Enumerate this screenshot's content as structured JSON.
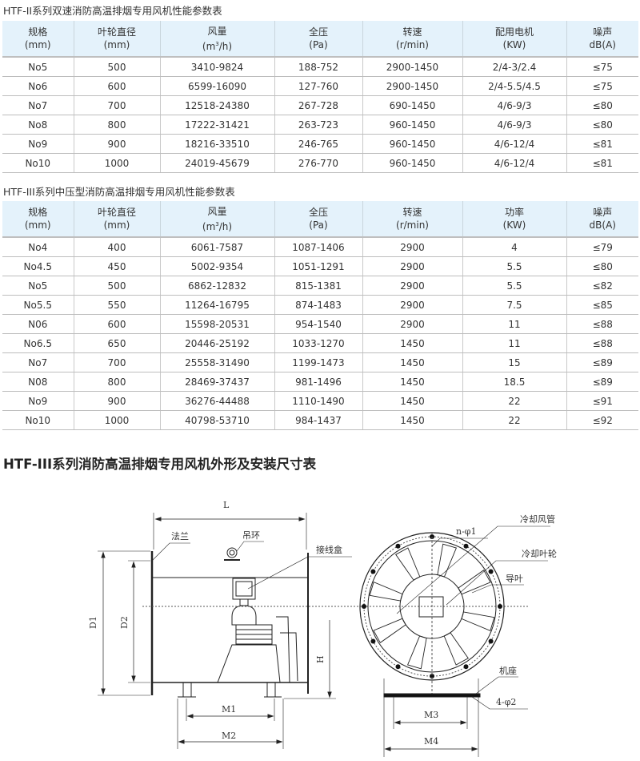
{
  "table1": {
    "title": "HTF-II系列双速消防高温排烟专用风机性能参数表",
    "headers": [
      [
        "规格",
        "(mm)"
      ],
      [
        "叶轮直径",
        "(mm)"
      ],
      [
        "风量",
        "(m",
        "3",
        "/h)"
      ],
      [
        "全压",
        "(Pa)"
      ],
      [
        "转速",
        "(r/min)"
      ],
      [
        "配用电机",
        "(KW)"
      ],
      [
        "噪声",
        "dB(A)"
      ]
    ],
    "rows": [
      [
        "No5",
        "500",
        "3410-9824",
        "188-752",
        "2900-1450",
        "2/4-3/2.4",
        "≤75"
      ],
      [
        "No6",
        "600",
        "6599-16090",
        "127-760",
        "2900-1450",
        "2/4-5.5/4.5",
        "≤75"
      ],
      [
        "No7",
        "700",
        "12518-24380",
        "267-728",
        "690-1450",
        "4/6-9/3",
        "≤80"
      ],
      [
        "No8",
        "800",
        "17222-31421",
        "263-723",
        "960-1450",
        "4/6-9/3",
        "≤80"
      ],
      [
        "No9",
        "900",
        "18216-33510",
        "246-765",
        "960-1450",
        "4/6-12/4",
        "≤81"
      ],
      [
        "No10",
        "1000",
        "24019-45679",
        "276-770",
        "960-1450",
        "4/6-12/4",
        "≤81"
      ]
    ]
  },
  "table2": {
    "title": "HTF-III系列中压型消防高温排烟专用风机性能参数表",
    "headers": [
      [
        "规格",
        "(mm)"
      ],
      [
        "叶轮直径",
        "(mm)"
      ],
      [
        "风量",
        "(m",
        "3",
        "/h)"
      ],
      [
        "全压",
        "(Pa)"
      ],
      [
        "转速",
        "(r/min)"
      ],
      [
        "功率",
        "(KW)"
      ],
      [
        "噪声",
        "dB(A)"
      ]
    ],
    "rows": [
      [
        "No4",
        "400",
        "6061-7587",
        "1087-1406",
        "2900",
        "4",
        "≤79"
      ],
      [
        "No4.5",
        "450",
        "5002-9354",
        "1051-1291",
        "2900",
        "5.5",
        "≤80"
      ],
      [
        "No5",
        "500",
        "6862-12832",
        "815-1381",
        "2900",
        "5.5",
        "≤82"
      ],
      [
        "No5.5",
        "550",
        "11264-16795",
        "874-1483",
        "2900",
        "7.5",
        "≤85"
      ],
      [
        "N06",
        "600",
        "15598-20531",
        "954-1540",
        "2900",
        "11",
        "≤88"
      ],
      [
        "No6.5",
        "650",
        "20446-25192",
        "1033-1270",
        "1450",
        "11",
        "≤88"
      ],
      [
        "No7",
        "700",
        "25558-31490",
        "1199-1473",
        "1450",
        "15",
        "≤89"
      ],
      [
        "N08",
        "800",
        "28469-37437",
        "981-1496",
        "1450",
        "18.5",
        "≤89"
      ],
      [
        "No9",
        "900",
        "36276-44488",
        "1110-1490",
        "1450",
        "22",
        "≤91"
      ],
      [
        "No10",
        "1000",
        "40798-53710",
        "984-1437",
        "1450",
        "22",
        "≤92"
      ]
    ]
  },
  "drawing": {
    "heading": "HTF-III系列消防高温排烟专用风机外形及安装尺寸表",
    "labels": {
      "L": "L",
      "D1": "D1",
      "D2": "D2",
      "H": "H",
      "M1": "M1",
      "M2": "M2",
      "M3": "M3",
      "M4": "M4",
      "flange": "法兰",
      "lifting_ring": "吊环",
      "junction_box": "接线盒",
      "cooling_duct": "冷却风管",
      "bolt_holes": "n-φ1",
      "cooling_impeller": "冷却叶轮",
      "guide_vane": "导叶",
      "base": "机座",
      "base_holes": "4-φ2"
    }
  }
}
